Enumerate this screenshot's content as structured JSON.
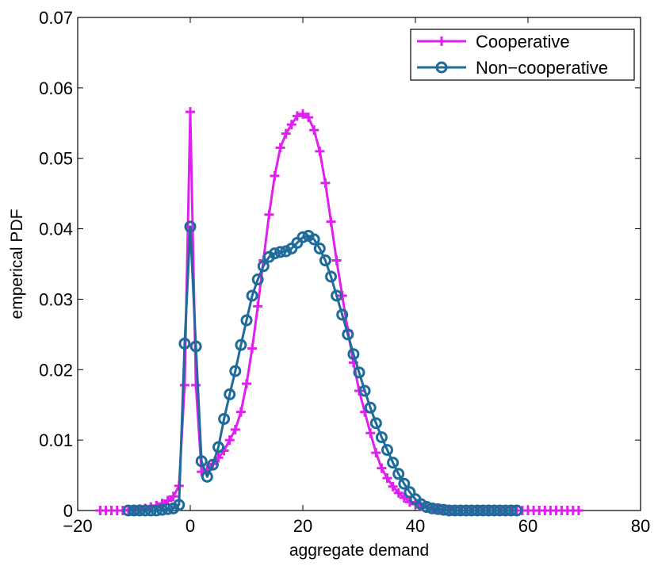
{
  "chart_data": {
    "type": "line",
    "title": "",
    "xlabel": "aggregate demand",
    "ylabel": "emperical PDF",
    "xlim": [
      -20,
      80
    ],
    "ylim": [
      0,
      0.07
    ],
    "xticks": [
      -20,
      0,
      20,
      40,
      60,
      80
    ],
    "yticks": [
      0,
      0.01,
      0.02,
      0.03,
      0.04,
      0.05,
      0.06,
      0.07
    ],
    "xtick_labels": [
      "−20",
      "0",
      "20",
      "40",
      "60",
      "80"
    ],
    "ytick_labels": [
      "0",
      "0.01",
      "0.02",
      "0.03",
      "0.04",
      "0.05",
      "0.06",
      "0.07"
    ],
    "grid": false,
    "legend_position": "top-right",
    "series": [
      {
        "name": "Cooperative",
        "color": "#e020f0",
        "marker": "plus",
        "x": [
          -16,
          -15,
          -14,
          -13,
          -12,
          -11,
          -10,
          -9,
          -8,
          -7,
          -6,
          -5,
          -4,
          -3,
          -2,
          -1,
          0,
          1,
          2,
          3,
          4,
          5,
          6,
          7,
          8,
          9,
          10,
          11,
          12,
          13,
          14,
          15,
          16,
          17,
          18,
          19,
          20,
          21,
          22,
          23,
          24,
          25,
          26,
          27,
          28,
          29,
          30,
          31,
          32,
          33,
          34,
          35,
          36,
          37,
          38,
          39,
          40,
          41,
          42,
          43,
          44,
          45,
          46,
          47,
          48,
          49,
          50,
          51,
          52,
          53,
          54,
          55,
          56,
          57,
          58,
          59,
          60,
          61,
          62,
          63,
          64,
          65,
          66,
          67,
          68,
          69
        ],
        "y": [
          0,
          0,
          0,
          0,
          0,
          0.0001,
          0.0001,
          0.0002,
          0.0003,
          0.0005,
          0.0007,
          0.001,
          0.0014,
          0.002,
          0.0035,
          0.0178,
          0.0566,
          0.0178,
          0.0055,
          0.0058,
          0.0066,
          0.0075,
          0.0085,
          0.01,
          0.0115,
          0.014,
          0.018,
          0.023,
          0.029,
          0.0355,
          0.042,
          0.0475,
          0.0515,
          0.0535,
          0.0548,
          0.056,
          0.0563,
          0.0558,
          0.054,
          0.051,
          0.0465,
          0.041,
          0.0355,
          0.0305,
          0.0255,
          0.021,
          0.017,
          0.014,
          0.011,
          0.0082,
          0.006,
          0.0046,
          0.0034,
          0.0025,
          0.0018,
          0.0012,
          0.0009,
          0.0006,
          0.0004,
          0.0003,
          0.0002,
          0.0001,
          0.0001,
          0,
          0,
          0,
          0,
          0,
          0,
          0,
          0,
          0,
          0,
          0,
          0,
          0,
          0,
          0,
          0,
          0,
          0,
          0,
          0,
          0,
          0,
          0
        ]
      },
      {
        "name": "Non−cooperative",
        "color": "#1f6b9a",
        "marker": "circle",
        "x": [
          -11,
          -10,
          -9,
          -8,
          -7,
          -6,
          -5,
          -4,
          -3,
          -2,
          -1,
          0,
          1,
          2,
          3,
          4,
          5,
          6,
          7,
          8,
          9,
          10,
          11,
          12,
          13,
          14,
          15,
          16,
          17,
          18,
          19,
          20,
          21,
          22,
          23,
          24,
          25,
          26,
          27,
          28,
          29,
          30,
          31,
          32,
          33,
          34,
          35,
          36,
          37,
          38,
          39,
          40,
          41,
          42,
          43,
          44,
          45,
          46,
          47,
          48,
          49,
          50,
          51,
          52,
          53,
          54,
          55,
          56,
          57,
          58
        ],
        "y": [
          0,
          0,
          0,
          0,
          0,
          0,
          0.0001,
          0.0002,
          0.0003,
          0.0008,
          0.0237,
          0.0403,
          0.0233,
          0.007,
          0.0048,
          0.0065,
          0.009,
          0.013,
          0.0165,
          0.0198,
          0.0235,
          0.027,
          0.0305,
          0.0328,
          0.0347,
          0.036,
          0.0365,
          0.0367,
          0.0368,
          0.0372,
          0.038,
          0.0388,
          0.039,
          0.0385,
          0.0372,
          0.0355,
          0.0332,
          0.0305,
          0.0278,
          0.025,
          0.0222,
          0.0196,
          0.017,
          0.0146,
          0.0124,
          0.0104,
          0.0086,
          0.0068,
          0.0052,
          0.0038,
          0.0026,
          0.0016,
          0.0009,
          0.0005,
          0.0003,
          0.0002,
          0.0001,
          0,
          0,
          0,
          0,
          0,
          0,
          0,
          0,
          0,
          0,
          0,
          0,
          0
        ]
      }
    ]
  }
}
